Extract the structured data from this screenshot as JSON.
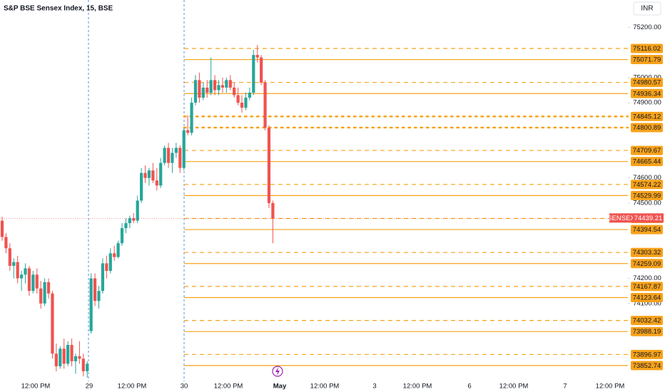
{
  "chart_data": {
    "type": "candlestick",
    "title": "S&P BSE Sensex Index, 15, BSE",
    "currency": "INR",
    "symbol": "SENSEX",
    "last_price": 74439.21,
    "up_color": "#26a69a",
    "down_color": "#ef5350",
    "level_color": "#f7a21b",
    "ylim": [
      73790,
      75309
    ],
    "yticks": [
      {
        "value": 75200,
        "label": "75200.00"
      },
      {
        "value": 75000,
        "label": "75000.00"
      },
      {
        "value": 74900,
        "label": "74900.00"
      },
      {
        "value": 74600,
        "label": "74600.00"
      },
      {
        "value": 74500,
        "label": "74500.00"
      },
      {
        "value": 74200,
        "label": "74200.00"
      },
      {
        "value": 74100,
        "label": "74100.00"
      }
    ],
    "time_labels": [
      "12:00 PM",
      "29",
      "12:00 PM",
      "30",
      "12:00 PM",
      "May",
      "12:00 PM",
      "3",
      "12:00 PM",
      "6",
      "12:00 PM",
      "7",
      "12:00 PM"
    ],
    "levels": [
      {
        "value": 75116.02,
        "style": "dashed"
      },
      {
        "value": 75071.79,
        "style": "solid"
      },
      {
        "value": 74980.57,
        "style": "dashed"
      },
      {
        "value": 74936.34,
        "style": "solid"
      },
      {
        "value": 74845.12,
        "style": "dotted"
      },
      {
        "value": 74800.89,
        "style": "dotted"
      },
      {
        "value": 74709.67,
        "style": "dashed"
      },
      {
        "value": 74665.44,
        "style": "solid"
      },
      {
        "value": 74574.22,
        "style": "dashed"
      },
      {
        "value": 74529.99,
        "style": "solid"
      },
      {
        "value": 74438.77,
        "style": "dashed"
      },
      {
        "value": 74394.54,
        "style": "solid"
      },
      {
        "value": 74303.32,
        "style": "dashed"
      },
      {
        "value": 74259.09,
        "style": "solid"
      },
      {
        "value": 74167.87,
        "style": "dashed"
      },
      {
        "value": 74123.64,
        "style": "solid"
      },
      {
        "value": 74032.42,
        "style": "dashed"
      },
      {
        "value": 73988.19,
        "style": "solid"
      },
      {
        "value": 73896.97,
        "style": "dashed"
      },
      {
        "value": 73852.74,
        "style": "solid"
      }
    ],
    "candles": [
      [
        74430,
        74445,
        74350,
        74365
      ],
      [
        74365,
        74380,
        74300,
        74320
      ],
      [
        74320,
        74340,
        74230,
        74250
      ],
      [
        74250,
        74280,
        74200,
        74265
      ],
      [
        74265,
        74290,
        74180,
        74200
      ],
      [
        74200,
        74230,
        74150,
        74215
      ],
      [
        74215,
        74260,
        74180,
        74240
      ],
      [
        74240,
        74250,
        74130,
        74150
      ],
      [
        74150,
        74230,
        74140,
        74215
      ],
      [
        74215,
        74240,
        74140,
        74160
      ],
      [
        74160,
        74190,
        74080,
        74100
      ],
      [
        74100,
        74200,
        74090,
        74185
      ],
      [
        74185,
        74200,
        74120,
        74140
      ],
      [
        74140,
        74150,
        73880,
        73900
      ],
      [
        73900,
        73940,
        73830,
        73850
      ],
      [
        73850,
        73930,
        73840,
        73920
      ],
      [
        73920,
        73960,
        73840,
        73860
      ],
      [
        73860,
        73950,
        73850,
        73935
      ],
      [
        73935,
        73960,
        73850,
        73870
      ],
      [
        73870,
        73900,
        73820,
        73890
      ],
      [
        73890,
        73950,
        73860,
        73880
      ],
      [
        73880,
        73900,
        73810,
        73830
      ],
      [
        73830,
        73870,
        73805,
        73860
      ],
      [
        73990,
        74220,
        73980,
        74200
      ],
      [
        74200,
        74220,
        74090,
        74110
      ],
      [
        74110,
        74170,
        74080,
        74150
      ],
      [
        74150,
        74280,
        74140,
        74260
      ],
      [
        74260,
        74290,
        74200,
        74230
      ],
      [
        74230,
        74320,
        74220,
        74300
      ],
      [
        74300,
        74330,
        74270,
        74285
      ],
      [
        74285,
        74350,
        74280,
        74340
      ],
      [
        74340,
        74420,
        74330,
        74400
      ],
      [
        74400,
        74440,
        74380,
        74420
      ],
      [
        74420,
        74450,
        74400,
        74440
      ],
      [
        74440,
        74460,
        74420,
        74430
      ],
      [
        74430,
        74530,
        74420,
        74510
      ],
      [
        74510,
        74640,
        74500,
        74620
      ],
      [
        74620,
        74650,
        74580,
        74600
      ],
      [
        74600,
        74640,
        74570,
        74630
      ],
      [
        74630,
        74660,
        74580,
        74590
      ],
      [
        74590,
        74640,
        74550,
        74570
      ],
      [
        74570,
        74680,
        74560,
        74660
      ],
      [
        74660,
        74730,
        74650,
        74720
      ],
      [
        74720,
        74740,
        74640,
        74660
      ],
      [
        74660,
        74720,
        74620,
        74700
      ],
      [
        74700,
        74740,
        74680,
        74720
      ],
      [
        74720,
        74730,
        74620,
        74640
      ],
      [
        74640,
        74800,
        74630,
        74790
      ],
      [
        74790,
        74850,
        74770,
        74780
      ],
      [
        74780,
        74920,
        74770,
        74900
      ],
      [
        74900,
        75010,
        74890,
        74990
      ],
      [
        74990,
        75020,
        74900,
        74920
      ],
      [
        74920,
        74980,
        74910,
        74960
      ],
      [
        74960,
        74990,
        74920,
        74940
      ],
      [
        74940,
        75080,
        74930,
        74990
      ],
      [
        74990,
        75010,
        74930,
        74950
      ],
      [
        74950,
        74990,
        74930,
        74970
      ],
      [
        74970,
        75000,
        74940,
        74960
      ],
      [
        74960,
        75000,
        74940,
        74990
      ],
      [
        74990,
        75010,
        74950,
        74960
      ],
      [
        74960,
        74980,
        74920,
        74930
      ],
      [
        74930,
        74960,
        74890,
        74900
      ],
      [
        74900,
        74930,
        74860,
        74880
      ],
      [
        74880,
        74940,
        74870,
        74920
      ],
      [
        74920,
        74960,
        74910,
        74940
      ],
      [
        74940,
        75110,
        74930,
        75090
      ],
      [
        75090,
        75130,
        75060,
        75080
      ],
      [
        75080,
        75090,
        74970,
        74980
      ],
      [
        74980,
        74990,
        74790,
        74800
      ],
      [
        74800,
        74810,
        74480,
        74500
      ],
      [
        74500,
        74510,
        74340,
        74439.21
      ]
    ]
  }
}
